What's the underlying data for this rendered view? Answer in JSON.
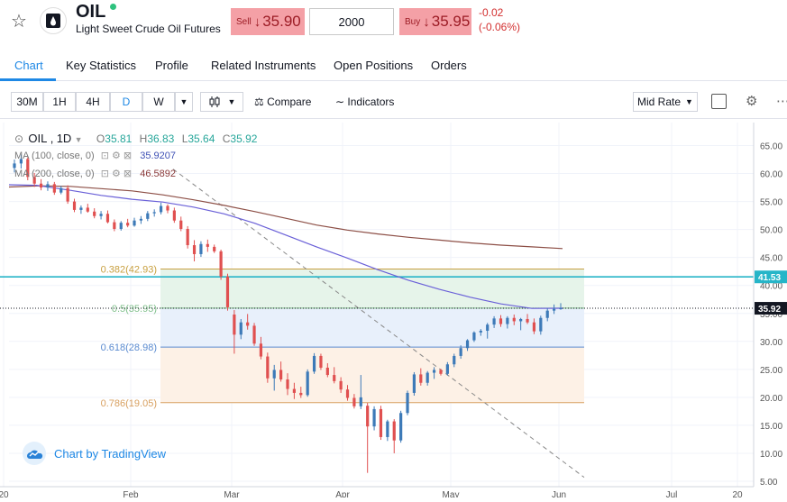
{
  "header": {
    "symbol": "OIL",
    "instrument_name": "Light Sweet Crude Oil Futures",
    "sell_label": "Sell",
    "sell_price": "35.90",
    "quantity": "2000",
    "buy_label": "Buy",
    "buy_price": "35.95",
    "change": "-0.02",
    "change_pct": "(-0.06%)"
  },
  "tabs": [
    "Chart",
    "Key Statistics",
    "Profile",
    "Related Instruments",
    "Open Positions",
    "Orders"
  ],
  "toolbar": {
    "timeframes": [
      "30M",
      "1H",
      "4H",
      "D",
      "W"
    ],
    "active_timeframe": "D",
    "compare_label": "Compare",
    "indicators_label": "Indicators",
    "price_type": "Mid Rate"
  },
  "legend": {
    "symbol": "OIL",
    "interval": "1D",
    "o_label": "O",
    "o": "35.81",
    "h_label": "H",
    "h": "36.83",
    "l_label": "L",
    "l": "35.64",
    "c_label": "C",
    "c": "35.92",
    "ma1_label": "MA (100, close, 0)",
    "ma1_value": "35.9207",
    "ma2_label": "MA (200, close, 0)",
    "ma2_value": "46.5892"
  },
  "brand": {
    "text": "Chart by TradingView"
  },
  "colors": {
    "up": "#3d7ab8",
    "down": "#e05050",
    "ma100": "#6a60d8",
    "ma200": "#8d4f46",
    "fib_0382": "#c8a040",
    "fib_0618": "#5b8bd0",
    "fib_0786": "#d8a060",
    "hline": "#26b5c8",
    "trendline": "#888888",
    "accent": "#1e88e5"
  },
  "chart_data": {
    "type": "candlestick",
    "y_range": [
      5,
      67.5
    ],
    "y_ticks": [
      "65.00",
      "60.00",
      "55.00",
      "50.00",
      "45.00",
      "40.00",
      "35.00",
      "30.00",
      "25.00",
      "20.00",
      "15.00",
      "10.00",
      "5.00"
    ],
    "x_labels": [
      "20",
      "Feb",
      "Mar",
      "Apr",
      "May",
      "Jun",
      "Jul",
      "20"
    ],
    "price_labels": [
      {
        "text": "41.53",
        "value": 41.53
      },
      {
        "text": "35.92",
        "value": 35.92
      }
    ],
    "fib_levels": [
      {
        "ratio": "0.382",
        "text": "0.382(42.93)",
        "value": 42.93
      },
      {
        "ratio": "0.5",
        "text": "0.5(35.95)",
        "value": 35.95
      },
      {
        "ratio": "0.618",
        "text": "0.618(28.98)",
        "value": 28.98
      },
      {
        "ratio": "0.786",
        "text": "0.786(19.05)",
        "value": 19.05
      }
    ],
    "hline": 41.53,
    "candles": [
      [
        61.0,
        62.5,
        60.2,
        61.8
      ],
      [
        61.8,
        63.4,
        60.9,
        62.6
      ],
      [
        62.6,
        62.9,
        58.8,
        59.4
      ],
      [
        59.4,
        60.1,
        57.6,
        58.2
      ],
      [
        58.2,
        59.0,
        57.0,
        57.5
      ],
      [
        57.5,
        58.6,
        56.9,
        58.1
      ],
      [
        58.1,
        58.5,
        56.2,
        56.6
      ],
      [
        56.6,
        57.8,
        56.3,
        57.4
      ],
      [
        57.4,
        57.9,
        54.6,
        55.0
      ],
      [
        55.0,
        55.5,
        53.1,
        53.5
      ],
      [
        53.5,
        54.3,
        52.8,
        53.9
      ],
      [
        53.9,
        54.6,
        53.0,
        53.2
      ],
      [
        53.2,
        53.8,
        52.0,
        52.4
      ],
      [
        52.4,
        53.3,
        51.8,
        52.8
      ],
      [
        52.8,
        53.4,
        51.1,
        51.3
      ],
      [
        51.3,
        51.8,
        49.7,
        50.1
      ],
      [
        50.1,
        51.5,
        49.8,
        51.2
      ],
      [
        51.2,
        51.9,
        50.4,
        50.7
      ],
      [
        50.7,
        52.1,
        50.5,
        51.6
      ],
      [
        51.6,
        52.4,
        51.0,
        51.9
      ],
      [
        51.9,
        53.3,
        51.5,
        52.9
      ],
      [
        52.9,
        53.6,
        52.3,
        53.1
      ],
      [
        53.1,
        54.8,
        52.7,
        54.2
      ],
      [
        54.2,
        54.5,
        52.9,
        53.4
      ],
      [
        53.4,
        53.9,
        51.2,
        51.6
      ],
      [
        51.6,
        52.3,
        49.7,
        50.1
      ],
      [
        50.1,
        50.6,
        46.6,
        47.2
      ],
      [
        47.2,
        48.1,
        44.3,
        45.6
      ],
      [
        45.6,
        47.9,
        45.1,
        47.4
      ],
      [
        47.4,
        48.2,
        46.0,
        46.9
      ],
      [
        46.9,
        47.3,
        45.8,
        46.1
      ],
      [
        46.1,
        46.4,
        41.0,
        41.6
      ],
      [
        41.6,
        42.1,
        35.5,
        36.1
      ],
      [
        34.8,
        35.6,
        27.8,
        31.2
      ],
      [
        31.2,
        34.0,
        30.4,
        33.4
      ],
      [
        33.4,
        34.9,
        32.1,
        32.8
      ],
      [
        32.8,
        33.3,
        29.2,
        29.6
      ],
      [
        29.6,
        30.8,
        26.8,
        27.3
      ],
      [
        27.3,
        28.0,
        22.6,
        23.4
      ],
      [
        23.4,
        25.8,
        21.2,
        24.9
      ],
      [
        24.9,
        26.4,
        22.8,
        23.2
      ],
      [
        23.2,
        24.3,
        20.4,
        21.5
      ],
      [
        21.5,
        22.6,
        19.7,
        20.8
      ],
      [
        20.8,
        21.9,
        19.9,
        20.4
      ],
      [
        20.4,
        25.0,
        20.1,
        24.6
      ],
      [
        24.6,
        27.9,
        24.2,
        27.4
      ],
      [
        27.4,
        27.8,
        24.9,
        25.3
      ],
      [
        25.3,
        26.1,
        23.6,
        24.0
      ],
      [
        24.0,
        25.4,
        22.5,
        22.9
      ],
      [
        22.9,
        23.6,
        20.8,
        21.4
      ],
      [
        21.4,
        22.2,
        19.4,
        19.9
      ],
      [
        19.9,
        20.6,
        18.0,
        18.4
      ],
      [
        18.4,
        24.0,
        17.9,
        20.0
      ],
      [
        18.5,
        19.0,
        6.5,
        14.8
      ],
      [
        14.8,
        18.4,
        14.1,
        17.9
      ],
      [
        17.9,
        18.5,
        12.4,
        12.9
      ],
      [
        12.9,
        16.0,
        12.2,
        15.7
      ],
      [
        15.7,
        16.1,
        10.0,
        12.3
      ],
      [
        12.3,
        17.6,
        11.9,
        17.2
      ],
      [
        17.2,
        21.2,
        16.8,
        20.8
      ],
      [
        20.8,
        24.5,
        20.3,
        24.1
      ],
      [
        24.1,
        25.2,
        22.1,
        22.6
      ],
      [
        22.6,
        24.7,
        22.1,
        24.4
      ],
      [
        24.4,
        25.4,
        23.3,
        24.9
      ],
      [
        24.9,
        25.1,
        23.9,
        24.2
      ],
      [
        24.2,
        26.3,
        23.9,
        25.9
      ],
      [
        25.9,
        27.8,
        25.4,
        27.4
      ],
      [
        27.4,
        29.3,
        26.9,
        28.8
      ],
      [
        28.8,
        30.4,
        28.3,
        30.2
      ],
      [
        30.2,
        31.8,
        29.9,
        31.6
      ],
      [
        31.6,
        32.2,
        31.0,
        31.9
      ],
      [
        31.9,
        33.3,
        30.5,
        33.0
      ],
      [
        33.0,
        34.5,
        32.4,
        34.1
      ],
      [
        34.1,
        34.7,
        32.6,
        33.1
      ],
      [
        33.1,
        34.5,
        32.3,
        34.2
      ],
      [
        34.2,
        34.8,
        32.9,
        33.6
      ],
      [
        33.6,
        34.2,
        32.0,
        34.0
      ],
      [
        34.0,
        34.9,
        33.1,
        33.4
      ],
      [
        33.4,
        34.1,
        31.3,
        31.8
      ],
      [
        31.8,
        34.6,
        31.2,
        34.2
      ],
      [
        34.2,
        35.9,
        33.6,
        35.5
      ],
      [
        35.5,
        36.6,
        34.9,
        35.81
      ],
      [
        35.81,
        36.83,
        35.64,
        35.92
      ]
    ],
    "ma100": [
      [
        0,
        58.0
      ],
      [
        18,
        57.9
      ],
      [
        40,
        57.0
      ],
      [
        60,
        56.1
      ],
      [
        80,
        55.4
      ],
      [
        100,
        54.9
      ],
      [
        120,
        54.0
      ],
      [
        140,
        52.8
      ],
      [
        160,
        51.1
      ],
      [
        180,
        49.0
      ],
      [
        200,
        46.9
      ],
      [
        220,
        44.9
      ],
      [
        240,
        42.8
      ],
      [
        260,
        40.9
      ],
      [
        280,
        39.3
      ],
      [
        300,
        37.9
      ],
      [
        320,
        36.7
      ],
      [
        340,
        35.9
      ],
      [
        360,
        35.92
      ]
    ],
    "ma200": [
      [
        0,
        57.6
      ],
      [
        20,
        57.8
      ],
      [
        40,
        57.7
      ],
      [
        60,
        57.3
      ],
      [
        80,
        56.9
      ],
      [
        100,
        56.2
      ],
      [
        120,
        55.3
      ],
      [
        140,
        54.3
      ],
      [
        160,
        53.2
      ],
      [
        180,
        52.0
      ],
      [
        200,
        50.8
      ],
      [
        220,
        49.9
      ],
      [
        240,
        49.2
      ],
      [
        260,
        48.6
      ],
      [
        280,
        48.1
      ],
      [
        300,
        47.6
      ],
      [
        320,
        47.2
      ],
      [
        340,
        46.9
      ],
      [
        360,
        46.5892
      ]
    ],
    "trendline": [
      [
        58.5,
        2.0
      ],
      [
        62.5,
        4.0
      ],
      [
        250.0,
        54.0
      ],
      [
        270.0,
        59.0
      ],
      [
        320.0,
        67.5
      ],
      [
        380.0,
        77.0
      ],
      [
        460.0,
        88.0
      ],
      [
        540.0,
        100.0
      ],
      [
        633.0,
        111.0
      ],
      [
        4.5,
        0.0
      ]
    ]
  }
}
